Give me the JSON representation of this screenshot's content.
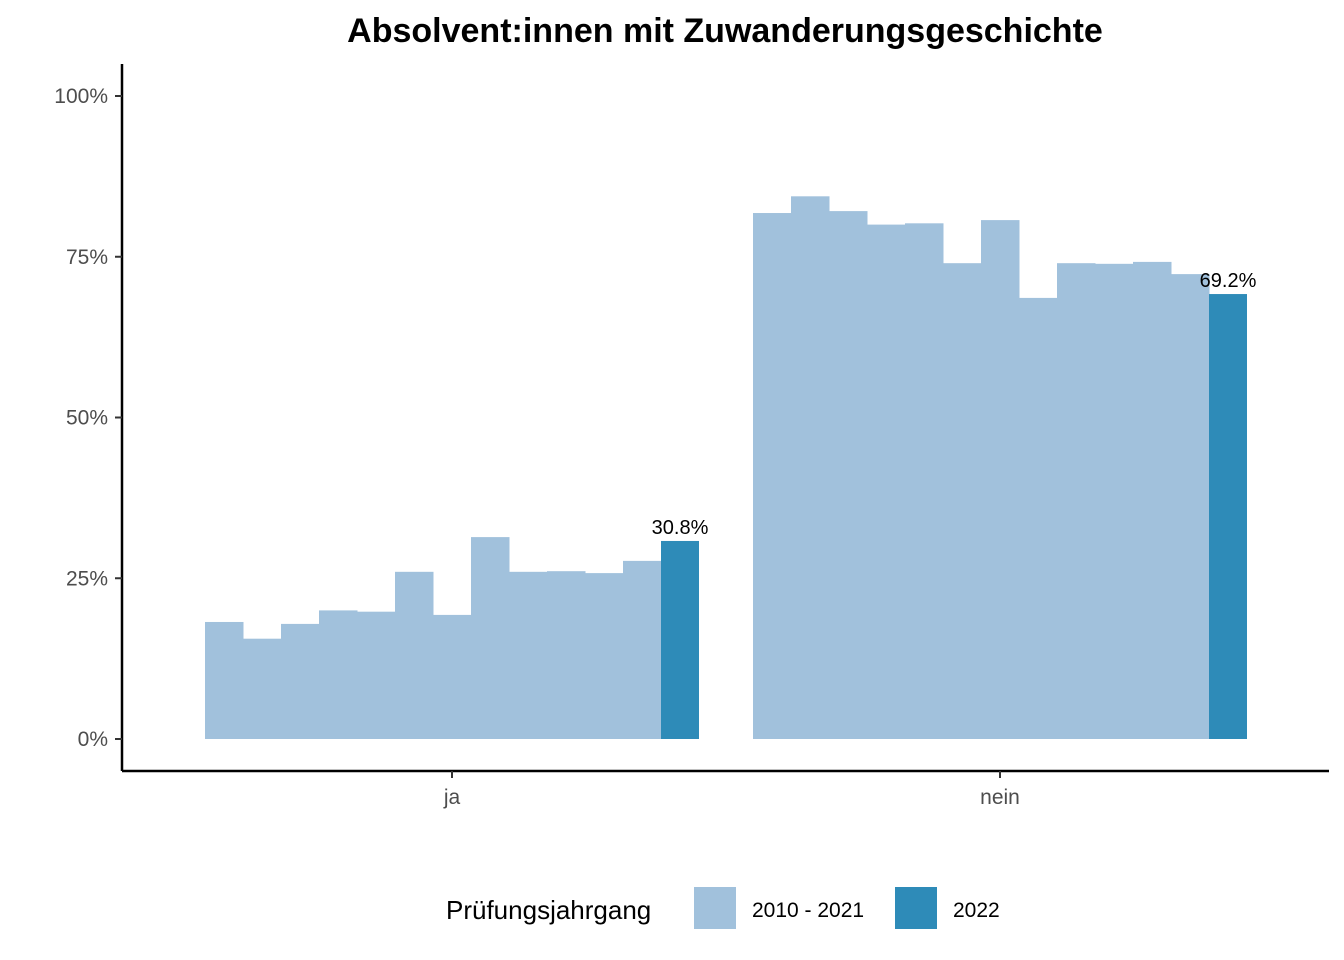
{
  "chart_data": {
    "type": "bar",
    "title": "Absolvent:innen mit Zuwanderungsgeschichte",
    "xlabel": "",
    "ylabel": "",
    "ylim": [
      0,
      100
    ],
    "y_ticks": [
      "0%",
      "25%",
      "50%",
      "75%",
      "100%"
    ],
    "y_tick_values": [
      0,
      25,
      50,
      75,
      100
    ],
    "categories": [
      "ja",
      "nein"
    ],
    "series_colors": {
      "2010 - 2021": "#a1c1dc",
      "2022": "#2e8bb8"
    },
    "groups": [
      {
        "category": "ja",
        "historic_values": [
          18.2,
          15.6,
          17.9,
          20.0,
          19.8,
          26.0,
          19.3,
          31.4,
          26.0,
          26.1,
          25.8,
          27.7
        ],
        "current_value": 30.8,
        "current_label": "30.8%"
      },
      {
        "category": "nein",
        "historic_values": [
          81.8,
          84.4,
          82.1,
          80.0,
          80.2,
          74.0,
          80.7,
          68.6,
          74.0,
          73.9,
          74.2,
          72.3
        ],
        "current_value": 69.2,
        "current_label": "69.2%"
      }
    ],
    "legend": {
      "title": "Prüfungsjahrgang",
      "placement": "bottom",
      "entries": [
        {
          "label": "2010 - 2021",
          "color": "#a1c1dc"
        },
        {
          "label": "2022",
          "color": "#2e8bb8"
        }
      ]
    },
    "grid": false
  }
}
